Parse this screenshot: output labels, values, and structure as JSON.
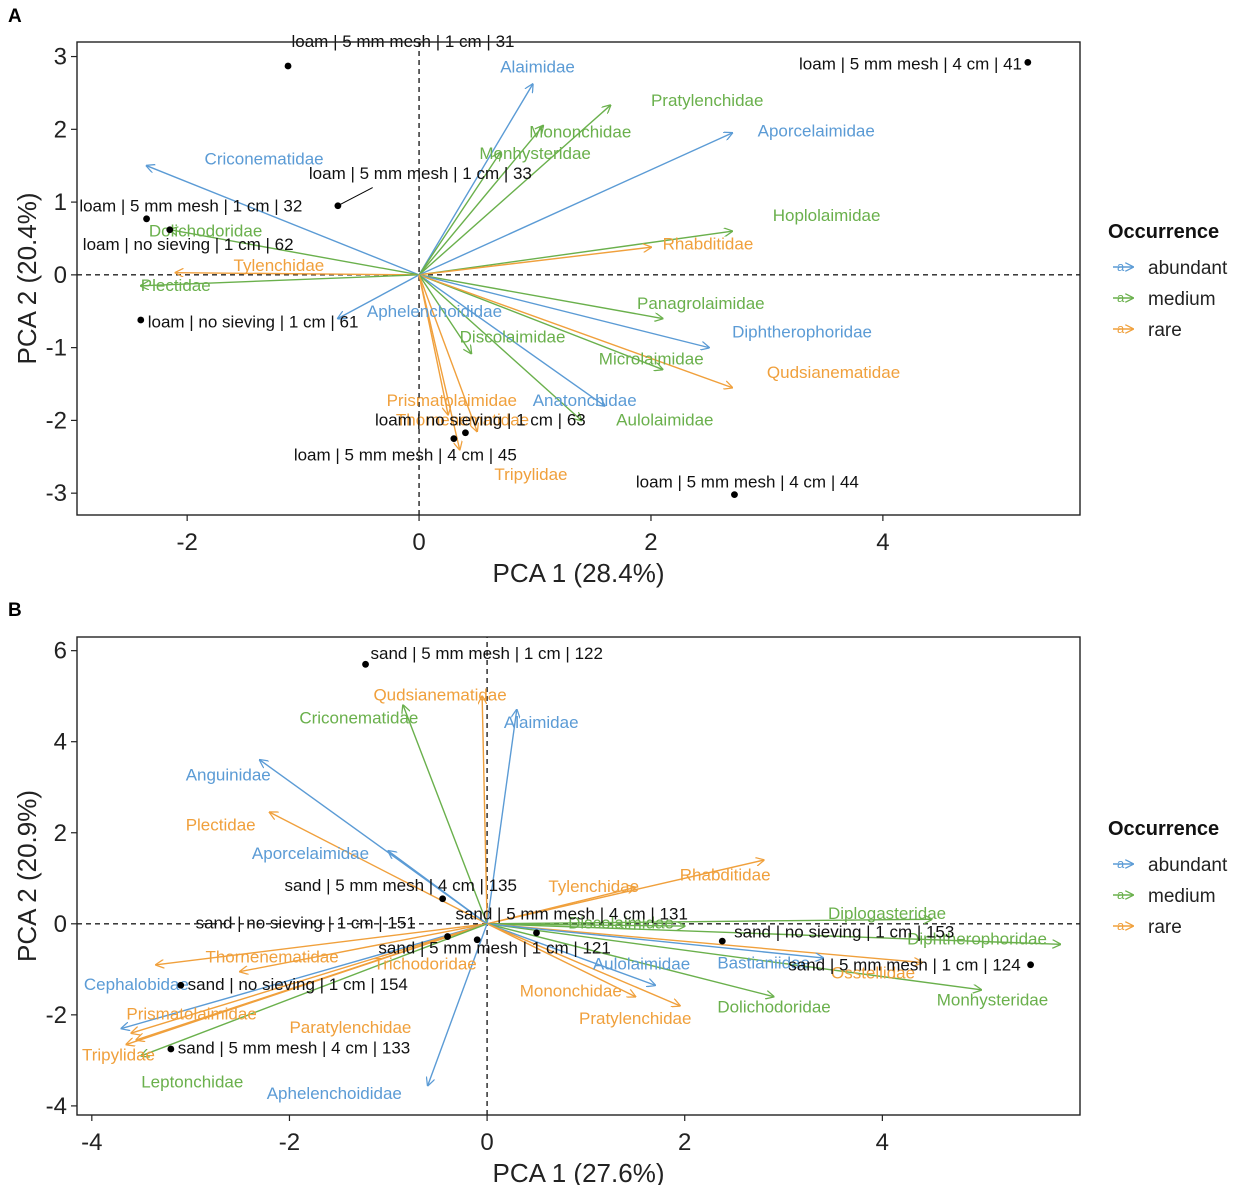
{
  "colors": {
    "abundant": "#5b9bd5",
    "medium": "#6ab04c",
    "rare": "#f0a03c"
  },
  "legend": {
    "title": "Occurrence",
    "items": [
      {
        "key": "abundant",
        "label": "abundant"
      },
      {
        "key": "medium",
        "label": "medium"
      },
      {
        "key": "rare",
        "label": "rare"
      }
    ]
  },
  "chart_data": [
    {
      "panel": "A",
      "type": "scatter",
      "subtype": "pca-biplot",
      "xlabel": "PCA 1 (28.4%)",
      "ylabel": "PCA 2 (20.4%)",
      "xlim": [
        -2.95,
        5.7
      ],
      "ylim": [
        -3.3,
        3.2
      ],
      "xticks": [
        -2,
        0,
        2,
        4
      ],
      "yticks": [
        -3,
        -2,
        -1,
        0,
        1,
        2,
        3
      ],
      "grid": false,
      "legend_position": "right",
      "reference_lines": {
        "x": 0,
        "y": 0,
        "style": "dashed"
      },
      "loadings": [
        {
          "name": "Alaimidae",
          "occurrence": "abundant",
          "x": 0.98,
          "y": 2.62,
          "lx": 0.7,
          "ly": 2.78
        },
        {
          "name": "Pratylenchidae",
          "occurrence": "medium",
          "x": 1.65,
          "y": 2.33,
          "lx": 2.0,
          "ly": 2.32
        },
        {
          "name": "Mononchidae",
          "occurrence": "medium",
          "x": 1.07,
          "y": 2.05,
          "lx": 0.95,
          "ly": 1.89
        },
        {
          "name": "Monhysteridae",
          "occurrence": "medium",
          "x": 0.7,
          "y": 1.68,
          "lx": 0.52,
          "ly": 1.59
        },
        {
          "name": "Aporcelaimidae",
          "occurrence": "abundant",
          "x": 2.7,
          "y": 1.95,
          "lx": 2.92,
          "ly": 1.9
        },
        {
          "name": "Criconematidae",
          "occurrence": "abundant",
          "x": -2.35,
          "y": 1.5,
          "lx": -1.85,
          "ly": 1.52
        },
        {
          "name": "Dolichodoridae",
          "occurrence": "medium",
          "x": -2.15,
          "y": 0.62,
          "lx": -2.33,
          "ly": 0.53
        },
        {
          "name": "Tylenchidae",
          "occurrence": "rare",
          "x": -2.1,
          "y": 0.03,
          "lx": -1.6,
          "ly": 0.05
        },
        {
          "name": "Hoplolaimidae",
          "occurrence": "medium",
          "x": 2.7,
          "y": 0.6,
          "lx": 3.05,
          "ly": 0.74
        },
        {
          "name": "Rhabditidae",
          "occurrence": "rare",
          "x": 2.0,
          "y": 0.38,
          "lx": 2.1,
          "ly": 0.35
        },
        {
          "name": "Plectidae",
          "occurrence": "medium",
          "x": -2.4,
          "y": -0.15,
          "lx": -2.4,
          "ly": -0.22
        },
        {
          "name": "Aphelenchoididae",
          "occurrence": "abundant",
          "x": -0.7,
          "y": -0.6,
          "lx": -0.45,
          "ly": -0.58
        },
        {
          "name": "Panagrolaimidae",
          "occurrence": "medium",
          "x": 2.1,
          "y": -0.6,
          "lx": 1.88,
          "ly": -0.47
        },
        {
          "name": "Diphtherophoridae",
          "occurrence": "abundant",
          "x": 2.5,
          "y": -1.0,
          "lx": 2.7,
          "ly": -0.86
        },
        {
          "name": "Discolaimidae",
          "occurrence": "medium",
          "x": 0.45,
          "y": -1.08,
          "lx": 0.35,
          "ly": -0.93
        },
        {
          "name": "Microlaimidae",
          "occurrence": "medium",
          "x": 2.1,
          "y": -1.3,
          "lx": 1.55,
          "ly": -1.23
        },
        {
          "name": "Qudsianematidae",
          "occurrence": "rare",
          "x": 2.7,
          "y": -1.55,
          "lx": 3.0,
          "ly": -1.42
        },
        {
          "name": "Prismatolaimidae",
          "occurrence": "rare",
          "x": 0.25,
          "y": -1.92,
          "lx": -0.28,
          "ly": -1.8
        },
        {
          "name": "Anatonchidae",
          "occurrence": "abundant",
          "x": 1.6,
          "y": -1.8,
          "lx": 0.98,
          "ly": -1.8
        },
        {
          "name": "Thornenematidae",
          "occurrence": "rare",
          "x": 0.5,
          "y": -2.15,
          "lx": -0.2,
          "ly": -2.07
        },
        {
          "name": "Aulolaimidae",
          "occurrence": "medium",
          "x": 1.4,
          "y": -2.0,
          "lx": 1.7,
          "ly": -2.07
        },
        {
          "name": "Tripylidae",
          "occurrence": "rare",
          "x": 0.35,
          "y": -2.4,
          "lx": 0.65,
          "ly": -2.82
        }
      ],
      "samples": [
        {
          "label": "loam | 5 mm mesh | 1 cm | 31",
          "x": -1.13,
          "y": 2.87,
          "lx": -1.1,
          "ly": 3.13,
          "anchor": "start"
        },
        {
          "label": "loam | 5 mm mesh | 4 cm | 41",
          "x": 5.25,
          "y": 2.92,
          "lx": 5.2,
          "ly": 2.82,
          "anchor": "end"
        },
        {
          "label": "loam | 5 mm mesh | 1 cm | 33",
          "x": -0.7,
          "y": 0.95,
          "lx": -0.95,
          "ly": 1.32,
          "anchor": "start",
          "leader": true
        },
        {
          "label": "loam | 5 mm mesh | 1 cm | 32",
          "x": -2.35,
          "y": 0.77,
          "lx": -2.93,
          "ly": 0.87,
          "anchor": "start"
        },
        {
          "label": "loam | no sieving | 1 cm | 62",
          "x": -2.15,
          "y": 0.62,
          "lx": -2.9,
          "ly": 0.34,
          "anchor": "start"
        },
        {
          "label": "loam | no sieving | 1 cm | 61",
          "x": -2.4,
          "y": -0.62,
          "lx": -2.34,
          "ly": -0.72,
          "anchor": "start"
        },
        {
          "label": "loam | no sieving | 1 cm | 63",
          "x": 0.4,
          "y": -2.17,
          "lx": -0.38,
          "ly": -2.07,
          "anchor": "start"
        },
        {
          "label": "loam | 5 mm mesh | 4 cm | 45",
          "x": 0.3,
          "y": -2.25,
          "lx": -1.08,
          "ly": -2.55,
          "anchor": "start"
        },
        {
          "label": "loam | 5 mm mesh | 4 cm | 44",
          "x": 2.72,
          "y": -3.02,
          "lx": 1.87,
          "ly": -2.92,
          "anchor": "start"
        }
      ]
    },
    {
      "panel": "B",
      "type": "scatter",
      "subtype": "pca-biplot",
      "xlabel": "PCA 1 (27.6%)",
      "ylabel": "PCA 2 (20.9%)",
      "xlim": [
        -4.15,
        6.0
      ],
      "ylim": [
        -4.2,
        6.3
      ],
      "xticks": [
        -4,
        -2,
        0,
        2,
        4
      ],
      "yticks": [
        -4,
        -2,
        0,
        2,
        4,
        6
      ],
      "grid": false,
      "legend_position": "right",
      "reference_lines": {
        "x": 0,
        "y": 0,
        "style": "dashed"
      },
      "loadings": [
        {
          "name": "Qudsianematidae",
          "occurrence": "rare",
          "x": -0.05,
          "y": 5.0,
          "lx": -1.15,
          "ly": 4.9
        },
        {
          "name": "Criconematidae",
          "occurrence": "medium",
          "x": -0.85,
          "y": 4.8,
          "lx": -1.9,
          "ly": 4.4
        },
        {
          "name": "Alaimidae",
          "occurrence": "abundant",
          "x": 0.3,
          "y": 4.7,
          "lx": 0.17,
          "ly": 4.3
        },
        {
          "name": "Anguinidae",
          "occurrence": "abundant",
          "x": -2.3,
          "y": 3.6,
          "lx": -3.05,
          "ly": 3.15
        },
        {
          "name": "Plectidae",
          "occurrence": "rare",
          "x": -2.2,
          "y": 2.45,
          "lx": -3.05,
          "ly": 2.05
        },
        {
          "name": "Aporcelaimidae",
          "occurrence": "abundant",
          "x": -1.0,
          "y": 1.6,
          "lx": -2.38,
          "ly": 1.42
        },
        {
          "name": "Tylenchidae",
          "occurrence": "rare",
          "x": 1.5,
          "y": 0.8,
          "lx": 0.62,
          "ly": 0.7
        },
        {
          "name": "Rhabditidae",
          "occurrence": "rare",
          "x": 2.8,
          "y": 1.4,
          "lx": 1.95,
          "ly": 0.95
        },
        {
          "name": "Diplogasteridae",
          "occurrence": "medium",
          "x": 4.5,
          "y": 0.1,
          "lx": 3.45,
          "ly": 0.1
        },
        {
          "name": "Discolaimidae",
          "occurrence": "medium",
          "x": 2.0,
          "y": -0.05,
          "lx": 0.82,
          "ly": -0.1
        },
        {
          "name": "Diphtherophoridae",
          "occurrence": "medium",
          "x": 5.8,
          "y": -0.45,
          "lx": 4.25,
          "ly": -0.45
        },
        {
          "name": "Monhysteridae",
          "occurrence": "medium",
          "x": 5.0,
          "y": -1.45,
          "lx": 4.55,
          "ly": -1.8
        },
        {
          "name": "Osstellidae",
          "occurrence": "rare",
          "x": 4.4,
          "y": -0.85,
          "lx": 3.48,
          "ly": -1.2
        },
        {
          "name": "Bastianiidae",
          "occurrence": "abundant",
          "x": 3.4,
          "y": -0.75,
          "lx": 2.33,
          "ly": -0.98
        },
        {
          "name": "Dolichodoridae",
          "occurrence": "medium",
          "x": 2.9,
          "y": -1.6,
          "lx": 2.33,
          "ly": -1.95
        },
        {
          "name": "Aulolaimidae",
          "occurrence": "abundant",
          "x": 1.7,
          "y": -1.35,
          "lx": 1.07,
          "ly": -1.0
        },
        {
          "name": "Mononchidae",
          "occurrence": "rare",
          "x": 1.5,
          "y": -1.6,
          "lx": 0.33,
          "ly": -1.6
        },
        {
          "name": "Pratylenchidae",
          "occurrence": "rare",
          "x": 1.95,
          "y": -1.8,
          "lx": 0.93,
          "ly": -2.2
        },
        {
          "name": "Thornenematidae",
          "occurrence": "rare",
          "x": -3.35,
          "y": -0.9,
          "lx": -2.85,
          "ly": -0.85
        },
        {
          "name": "Trichodoridae",
          "occurrence": "rare",
          "x": -2.5,
          "y": -1.05,
          "lx": -1.15,
          "ly": -1.0
        },
        {
          "name": "Cephalobidae",
          "occurrence": "abundant",
          "x": -3.7,
          "y": -2.3,
          "lx": -4.08,
          "ly": -1.45
        },
        {
          "name": "Prismatolaimidae",
          "occurrence": "rare",
          "x": -3.6,
          "y": -2.4,
          "lx": -3.65,
          "ly": -2.1
        },
        {
          "name": "Paratylenchidae",
          "occurrence": "rare",
          "x": -3.55,
          "y": -2.55,
          "lx": -2.0,
          "ly": -2.4
        },
        {
          "name": "Tripylidae",
          "occurrence": "rare",
          "x": -3.65,
          "y": -2.65,
          "lx": -4.1,
          "ly": -3.0
        },
        {
          "name": "Leptonchidae",
          "occurrence": "medium",
          "x": -3.5,
          "y": -2.9,
          "lx": -3.5,
          "ly": -3.6
        },
        {
          "name": "Aphelenchoididae",
          "occurrence": "abundant",
          "x": -0.6,
          "y": -3.55,
          "lx": -2.23,
          "ly": -3.85
        }
      ],
      "samples": [
        {
          "label": "sand | 5 mm mesh | 1 cm | 122",
          "x": -1.23,
          "y": 5.7,
          "lx": -1.18,
          "ly": 5.82,
          "anchor": "start"
        },
        {
          "label": "sand | 5 mm mesh | 4 cm | 135",
          "x": -0.45,
          "y": 0.55,
          "lx": -2.05,
          "ly": 0.72,
          "anchor": "start"
        },
        {
          "label": "sand | 5 mm mesh | 4 cm | 131",
          "x": 0.5,
          "y": -0.2,
          "lx": -0.32,
          "ly": 0.09,
          "anchor": "start"
        },
        {
          "label": "sand | no sieving | 1 cm | 151",
          "x": -0.4,
          "y": -0.28,
          "lx": -2.95,
          "ly": -0.1,
          "anchor": "start"
        },
        {
          "label": "sand | 5 mm mesh | 1 cm | 121",
          "x": -0.1,
          "y": -0.35,
          "lx": -1.1,
          "ly": -0.65,
          "anchor": "start"
        },
        {
          "label": "sand | no sieving | 1 cm | 153",
          "x": 2.38,
          "y": -0.38,
          "lx": 2.5,
          "ly": -0.3,
          "anchor": "start"
        },
        {
          "label": "sand | 5 mm mesh | 1 cm | 124",
          "x": 5.5,
          "y": -0.9,
          "lx": 5.4,
          "ly": -1.03,
          "anchor": "end"
        },
        {
          "label": "sand | no sieving | 1 cm | 154",
          "x": -3.1,
          "y": -1.35,
          "lx": -3.03,
          "ly": -1.45,
          "anchor": "start"
        },
        {
          "label": "sand | 5 mm mesh | 4 cm | 133",
          "x": -3.2,
          "y": -2.75,
          "lx": -3.13,
          "ly": -2.85,
          "anchor": "start"
        }
      ]
    }
  ]
}
